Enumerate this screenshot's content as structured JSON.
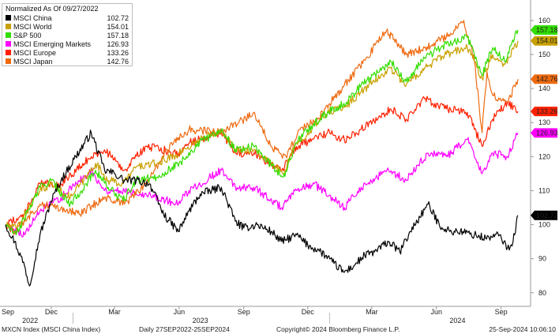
{
  "chart_data": {
    "type": "line",
    "legend_title": "Normalized As Of 09/27/2022",
    "legend_position": "top-left",
    "grid": false,
    "ylim": [
      76,
      166
    ],
    "y_ticks": [
      80,
      90,
      100,
      110,
      120,
      130,
      140,
      150,
      160
    ],
    "x_month_ticks": [
      "Sep",
      "Dec",
      "Mar",
      "Jun",
      "Sep",
      "Dec",
      "Mar",
      "Jun",
      "Sep"
    ],
    "x_month_tick_dates": [
      "2022-09-01",
      "2022-12-01",
      "2023-03-01",
      "2023-06-01",
      "2023-09-01",
      "2023-12-01",
      "2024-03-01",
      "2024-06-01",
      "2024-09-01"
    ],
    "x_year_labels": [
      "2022",
      "2023",
      "2024"
    ],
    "x_year_label_dates": [
      "2022-11-01",
      "2023-07-01",
      "2024-07-01"
    ],
    "xlim": [
      "2022-09-27",
      "2024-09-25"
    ],
    "series": [
      {
        "name": "MSCI China",
        "color": "#000000",
        "last": "102.72",
        "x": [
          "2022-09-27",
          "2022-10-10",
          "2022-10-24",
          "2022-10-31",
          "2022-11-15",
          "2022-12-01",
          "2022-12-15",
          "2023-01-05",
          "2023-01-27",
          "2023-02-15",
          "2023-03-01",
          "2023-03-15",
          "2023-04-01",
          "2023-04-20",
          "2023-05-10",
          "2023-05-31",
          "2023-06-15",
          "2023-07-01",
          "2023-07-31",
          "2023-08-20",
          "2023-09-01",
          "2023-09-20",
          "2023-10-10",
          "2023-10-25",
          "2023-11-15",
          "2023-12-01",
          "2023-12-20",
          "2024-01-05",
          "2024-01-22",
          "2024-02-05",
          "2024-02-20",
          "2024-03-05",
          "2024-03-25",
          "2024-04-10",
          "2024-04-25",
          "2024-05-20",
          "2024-06-05",
          "2024-06-20",
          "2024-07-05",
          "2024-07-25",
          "2024-08-10",
          "2024-08-30",
          "2024-09-10",
          "2024-09-18",
          "2024-09-25"
        ],
        "values": [
          100,
          95,
          88,
          82,
          97,
          107,
          113,
          120,
          127,
          116,
          115,
          113,
          113,
          112,
          103,
          98,
          104,
          109,
          111,
          101,
          99,
          100,
          98,
          95,
          97,
          94,
          92,
          89,
          86,
          88,
          91,
          92,
          95,
          92,
          98,
          106,
          100,
          98,
          98,
          97,
          96,
          97,
          93,
          95,
          102.72
        ]
      },
      {
        "name": "MSCI World",
        "color": "#c8a000",
        "last": "154.01",
        "x": [
          "2022-09-27",
          "2022-10-12",
          "2022-11-15",
          "2022-12-01",
          "2022-12-28",
          "2023-01-20",
          "2023-02-02",
          "2023-02-20",
          "2023-03-13",
          "2023-04-01",
          "2023-05-01",
          "2023-06-01",
          "2023-06-30",
          "2023-07-31",
          "2023-08-20",
          "2023-09-15",
          "2023-10-27",
          "2023-11-15",
          "2023-12-01",
          "2023-12-29",
          "2024-01-25",
          "2024-02-15",
          "2024-03-28",
          "2024-04-19",
          "2024-05-15",
          "2024-06-15",
          "2024-07-15",
          "2024-07-25",
          "2024-08-05",
          "2024-08-20",
          "2024-09-06",
          "2024-09-25"
        ],
        "values": [
          100,
          99,
          110,
          112,
          108,
          114,
          118,
          113,
          112,
          117,
          118,
          121,
          125,
          128,
          122,
          122,
          115,
          124,
          127,
          133,
          135,
          139,
          146,
          141,
          146,
          150,
          152,
          148,
          143,
          150,
          147,
          154.01
        ]
      },
      {
        "name": "S&P 500",
        "color": "#33dd00",
        "last": "157.18",
        "x": [
          "2022-09-27",
          "2022-10-12",
          "2022-11-15",
          "2022-12-01",
          "2022-12-28",
          "2023-01-20",
          "2023-02-02",
          "2023-02-20",
          "2023-03-13",
          "2023-04-01",
          "2023-05-01",
          "2023-06-01",
          "2023-06-30",
          "2023-07-31",
          "2023-08-20",
          "2023-09-15",
          "2023-10-27",
          "2023-11-15",
          "2023-12-01",
          "2023-12-29",
          "2024-01-25",
          "2024-02-15",
          "2024-03-28",
          "2024-04-19",
          "2024-05-15",
          "2024-06-15",
          "2024-07-15",
          "2024-07-25",
          "2024-08-05",
          "2024-08-20",
          "2024-09-06",
          "2024-09-25"
        ],
        "values": [
          100,
          97,
          111,
          113,
          106,
          112,
          116,
          111,
          107,
          113,
          114,
          118,
          124,
          128,
          122,
          123,
          114,
          124,
          128,
          133,
          136,
          141,
          148,
          142,
          149,
          153,
          155,
          150,
          144,
          152,
          148,
          157.18
        ]
      },
      {
        "name": "MSCI Emerging Markets",
        "color": "#ff00ff",
        "last": "126.93",
        "x": [
          "2022-09-27",
          "2022-10-24",
          "2022-11-15",
          "2022-12-15",
          "2023-01-27",
          "2023-02-15",
          "2023-03-15",
          "2023-04-15",
          "2023-05-31",
          "2023-06-15",
          "2023-07-31",
          "2023-08-20",
          "2023-09-15",
          "2023-10-25",
          "2023-11-15",
          "2023-12-10",
          "2024-01-22",
          "2024-02-15",
          "2024-03-25",
          "2024-04-19",
          "2024-05-20",
          "2024-06-15",
          "2024-07-15",
          "2024-08-05",
          "2024-08-20",
          "2024-09-10",
          "2024-09-25"
        ],
        "values": [
          100,
          97,
          104,
          108,
          116,
          110,
          110,
          109,
          106,
          110,
          116,
          111,
          111,
          105,
          110,
          112,
          105,
          111,
          116,
          113,
          121,
          120,
          125,
          115,
          121,
          120,
          126.93
        ]
      },
      {
        "name": "MSCI Europe",
        "color": "#ff2000",
        "last": "133.26",
        "x": [
          "2022-09-27",
          "2022-10-24",
          "2022-11-15",
          "2022-12-15",
          "2023-01-27",
          "2023-02-15",
          "2023-03-15",
          "2023-04-15",
          "2023-05-31",
          "2023-06-15",
          "2023-07-31",
          "2023-08-20",
          "2023-09-15",
          "2023-10-25",
          "2023-11-15",
          "2023-12-29",
          "2024-01-22",
          "2024-02-15",
          "2024-03-28",
          "2024-04-19",
          "2024-05-15",
          "2024-06-15",
          "2024-07-15",
          "2024-08-05",
          "2024-08-20",
          "2024-09-10",
          "2024-09-25"
        ],
        "values": [
          100,
          103,
          112,
          112,
          120,
          122,
          116,
          123,
          121,
          124,
          127,
          121,
          121,
          116,
          123,
          127,
          125,
          128,
          134,
          131,
          137,
          134,
          133,
          123,
          131,
          136,
          133.26
        ]
      },
      {
        "name": "MSCI Japan",
        "color": "#ee6a10",
        "last": "142.76",
        "x": [
          "2022-09-27",
          "2022-10-10",
          "2022-11-15",
          "2022-12-15",
          "2023-01-10",
          "2023-02-15",
          "2023-03-15",
          "2023-04-15",
          "2023-05-15",
          "2023-06-15",
          "2023-07-31",
          "2023-08-25",
          "2023-09-15",
          "2023-10-10",
          "2023-10-31",
          "2023-11-20",
          "2023-12-15",
          "2024-01-22",
          "2024-02-22",
          "2024-03-22",
          "2024-04-19",
          "2024-05-15",
          "2024-06-15",
          "2024-07-10",
          "2024-07-25",
          "2024-08-05",
          "2024-08-12",
          "2024-08-20",
          "2024-09-10",
          "2024-09-25"
        ],
        "values": [
          100,
          98,
          106,
          105,
          103,
          108,
          106,
          112,
          122,
          128,
          127,
          130,
          133,
          123,
          120,
          128,
          131,
          141,
          149,
          157,
          150,
          152,
          155,
          160,
          148,
          127,
          145,
          138,
          136,
          142.76
        ]
      }
    ]
  },
  "footer": {
    "ticker": "MXCN Index (MSCI China Index)",
    "range": "Daily 27SEP2022-25SEP2024",
    "copyright": "Copyright© 2024 Bloomberg Finance L.P.",
    "timestamp": "25-Sep-2024 10:06:10"
  }
}
